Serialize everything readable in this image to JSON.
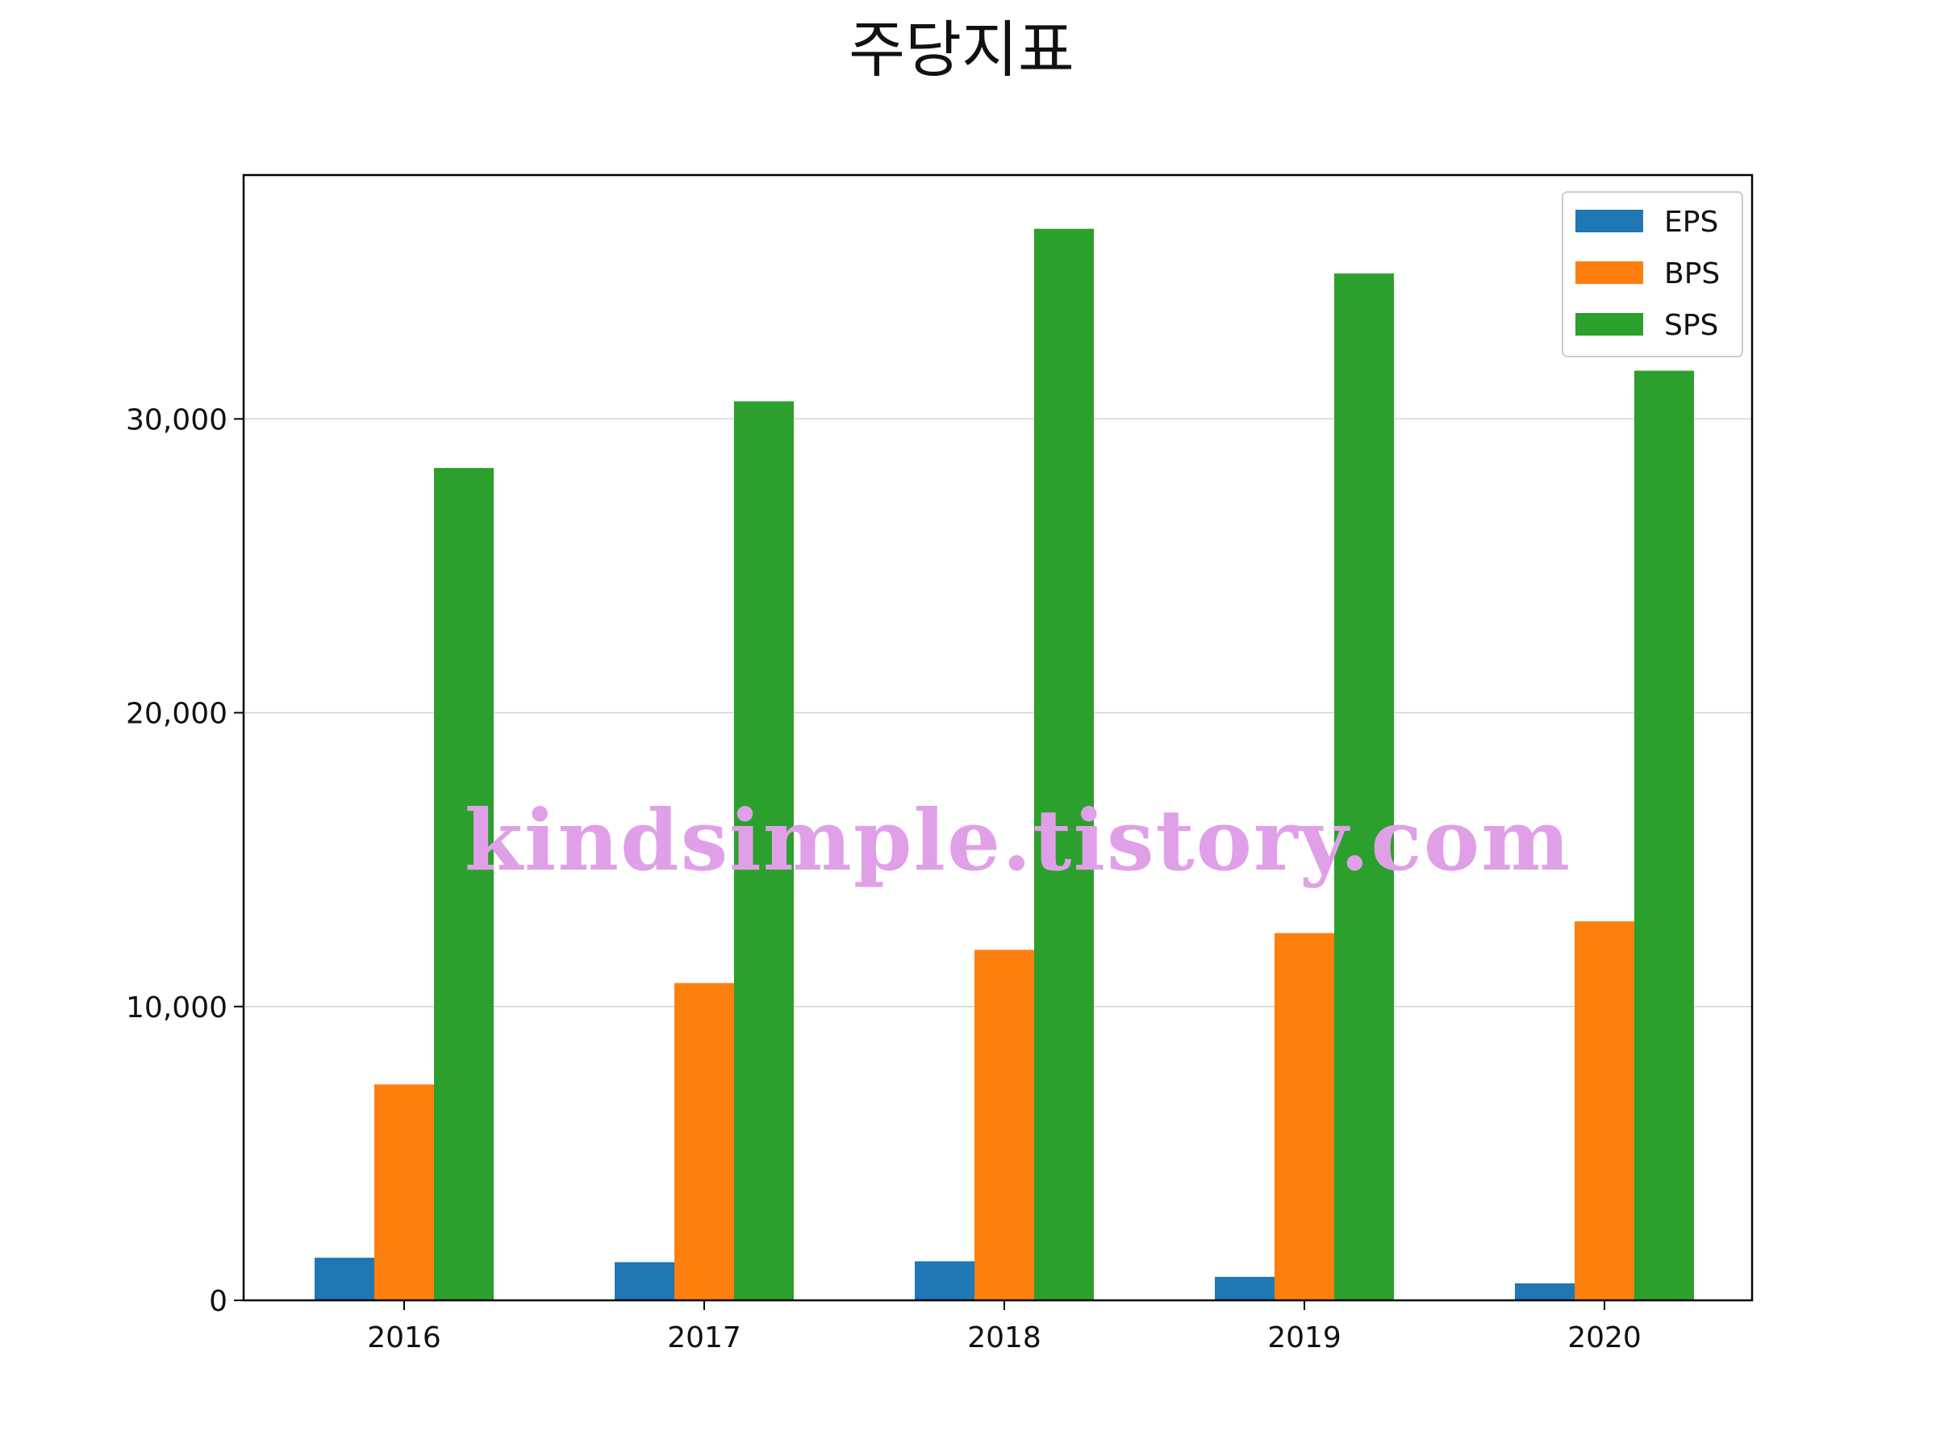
{
  "chart_data": {
    "type": "bar",
    "title": "주당지표",
    "xlabel": "",
    "ylabel": "",
    "categories": [
      "2016",
      "2017",
      "2018",
      "2019",
      "2020"
    ],
    "series": [
      {
        "name": "EPS",
        "color": "#1f77b4",
        "values": [
          1450,
          1300,
          1330,
          800,
          580
        ]
      },
      {
        "name": "BPS",
        "color": "#ff7f0e",
        "values": [
          7350,
          10800,
          11930,
          12500,
          12900
        ]
      },
      {
        "name": "SPS",
        "color": "#2ca02c",
        "values": [
          28330,
          30600,
          36470,
          34950,
          31640
        ]
      }
    ],
    "ylim": [
      0,
      38300
    ],
    "yticks": [
      0,
      10000,
      20000,
      30000
    ],
    "ytick_labels": [
      "0",
      "10,000",
      "20,000",
      "30,000"
    ],
    "grid": "y-major",
    "legend_position": "top-right"
  },
  "watermark": {
    "text": "kindsimple.tistory.com",
    "color": "#e0a0e8"
  }
}
